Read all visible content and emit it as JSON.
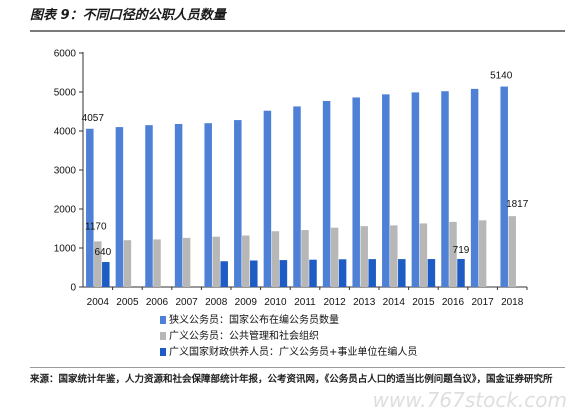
{
  "title": "图表 9：不同口径的公职人员数量",
  "source": "来源：国家统计年鉴，人力资源和社会保障部统计年报，公考资讯网，《公务员占人口的适当比例问题刍议》，国金证券研究所",
  "watermark": "www.767stock.com",
  "chart_data": {
    "type": "bar",
    "categories": [
      "2004",
      "2005",
      "2006",
      "2007",
      "2008",
      "2009",
      "2010",
      "2011",
      "2012",
      "2013",
      "2014",
      "2015",
      "2016",
      "2017",
      "2018"
    ],
    "ylim": [
      0,
      6000
    ],
    "yticks": [
      0,
      1000,
      2000,
      3000,
      4000,
      5000,
      6000
    ],
    "grid": false,
    "legend_position": "bottom-left",
    "series": [
      {
        "name": "狭义公务员：国家公布在编公务员数量",
        "color": "#4e80d6",
        "values": [
          4057,
          4100,
          4150,
          4180,
          4200,
          4280,
          4520,
          4630,
          4770,
          4860,
          4940,
          4990,
          5020,
          5080,
          5140
        ]
      },
      {
        "name": "广义公务员：公共管理和社会组织",
        "color": "#b7b7b7",
        "values": [
          1170,
          1200,
          1220,
          1260,
          1290,
          1320,
          1430,
          1460,
          1520,
          1560,
          1580,
          1630,
          1670,
          1710,
          1817
        ]
      },
      {
        "name": "广义国家财政供养人员：广义公务员+事业单位在编人员",
        "color": "#1d5cc4",
        "values": [
          640,
          null,
          null,
          null,
          660,
          680,
          690,
          700,
          710,
          715,
          715,
          717,
          719,
          null,
          null
        ]
      }
    ],
    "data_labels": [
      {
        "series": 0,
        "index": 0,
        "text": "4057"
      },
      {
        "series": 1,
        "index": 0,
        "text": "1170"
      },
      {
        "series": 2,
        "index": 0,
        "text": "640"
      },
      {
        "series": 0,
        "index": 14,
        "text": "5140"
      },
      {
        "series": 1,
        "index": 14,
        "text": "1817"
      },
      {
        "series": 2,
        "index": 12,
        "text": "719"
      }
    ]
  }
}
